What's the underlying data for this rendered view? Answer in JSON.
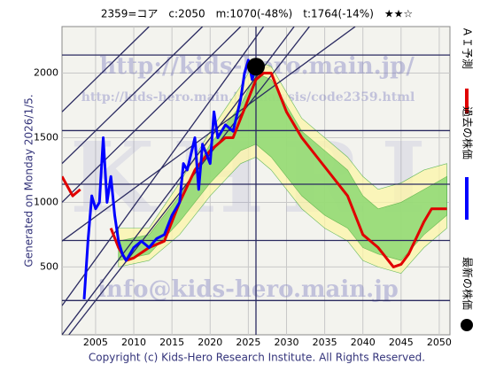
{
  "chart_data": {
    "type": "line",
    "title": "2359=コア　c:2050　m:1070(-48%)　t:1764(-14%)　★★☆",
    "side_note": "Generated on Monday 2026/1/5.",
    "footer": "Copyright (c) Kids-Hero Research Institute. All Rights Reserved.",
    "watermarks": [
      "http://kids-hero.main.jp/",
      "http://kids-hero.main.jp/analysis/code2359.html",
      "info@kids-hero.main.jp",
      "KHRI"
    ],
    "xlim": [
      2000.6,
      2051.4
    ],
    "ylim": [
      -25,
      2360
    ],
    "xticks": [
      2005,
      2010,
      2015,
      2020,
      2025,
      2030,
      2035,
      2040,
      2045,
      2050
    ],
    "yticks": [
      500,
      1000,
      1500,
      2000
    ],
    "grid": true,
    "bands": [
      {
        "color": "#fdf6a8",
        "x": [
          2008,
          2012,
          2016,
          2020,
          2024,
          2026,
          2028,
          2030,
          2032,
          2035,
          2038,
          2040,
          2042,
          2045,
          2048,
          2051
        ],
        "upper": [
          800,
          800,
          1150,
          1550,
          1900,
          2100,
          2050,
          1850,
          1650,
          1500,
          1350,
          1200,
          1100,
          1150,
          1250,
          1300
        ],
        "lower": [
          500,
          550,
          750,
          1050,
          1300,
          1350,
          1250,
          1100,
          950,
          800,
          700,
          550,
          500,
          450,
          650,
          800
        ]
      },
      {
        "color": "#7fd66a",
        "x": [
          2008,
          2012,
          2016,
          2020,
          2024,
          2026,
          2028,
          2030,
          2032,
          2035,
          2038,
          2040,
          2042,
          2045,
          2048,
          2051
        ],
        "upper": [
          700,
          750,
          1050,
          1450,
          1750,
          2000,
          1950,
          1750,
          1550,
          1400,
          1250,
          1050,
          950,
          1000,
          1100,
          1200
        ],
        "lower": [
          550,
          600,
          850,
          1150,
          1400,
          1450,
          1350,
          1200,
          1050,
          900,
          800,
          650,
          600,
          550,
          750,
          900
        ]
      }
    ],
    "hlines": [
      2140,
      1555,
      1140,
      705,
      240
    ],
    "vline": 2026,
    "channel_lines": [
      {
        "x": [
          2000.6,
          2012
        ],
        "values": [
          1700,
          2360
        ]
      },
      {
        "x": [
          2000.6,
          2019
        ],
        "values": [
          1300,
          2360
        ]
      },
      {
        "x": [
          2000.6,
          2024
        ],
        "values": [
          1000,
          2360
        ]
      },
      {
        "x": [
          2000.6,
          2039
        ],
        "values": [
          700,
          2360
        ]
      },
      {
        "x": [
          2000.6,
          2027
        ],
        "values": [
          200,
          2360
        ]
      },
      {
        "x": [
          2000.6,
          2031
        ],
        "values": [
          -25,
          2360
        ]
      },
      {
        "x": [
          2001.5,
          2033
        ],
        "values": [
          -25,
          2360
        ]
      }
    ],
    "series": [
      {
        "name": "ＡＩ予測",
        "color": "#e00000",
        "x": [
          2000.6,
          2002,
          2003,
          2005,
          2007,
          2008,
          2009,
          2010,
          2012,
          2014,
          2016,
          2018,
          2020,
          2022,
          2023,
          2024,
          2025,
          2026,
          2027,
          2028,
          2029,
          2030,
          2032,
          2034,
          2036,
          2038,
          2040,
          2042,
          2044,
          2045,
          2046,
          2048,
          2049,
          2050,
          2051
        ],
        "values": [
          1200,
          1050,
          1100,
          null,
          800,
          650,
          550,
          570,
          650,
          700,
          1000,
          1250,
          1400,
          1500,
          1500,
          1650,
          1800,
          1950,
          2000,
          2000,
          1850,
          1700,
          1500,
          1350,
          1200,
          1050,
          750,
          650,
          500,
          520,
          600,
          850,
          950,
          950,
          950
        ]
      },
      {
        "name": "過去の株価",
        "color": "#0000ff",
        "x": [
          2003.5,
          2004,
          2004.5,
          2005,
          2005.5,
          2006,
          2006.5,
          2007,
          2007.5,
          2008,
          2008.5,
          2009,
          2010,
          2011,
          2012,
          2013,
          2014,
          2015,
          2016,
          2016.5,
          2017,
          2018,
          2018.5,
          2019,
          2020,
          2020.5,
          2021,
          2022,
          2023,
          2024,
          2024.5,
          2025,
          2025.5,
          2026
        ],
        "values": [
          250,
          700,
          1050,
          950,
          1000,
          1500,
          1000,
          1200,
          900,
          700,
          600,
          550,
          650,
          700,
          650,
          720,
          750,
          900,
          1000,
          1300,
          1250,
          1500,
          1100,
          1450,
          1300,
          1700,
          1500,
          1600,
          1550,
          1800,
          2000,
          2100,
          1950,
          2050
        ]
      }
    ],
    "latest": {
      "name": "最新の株価",
      "color": "#000000",
      "x": 2026,
      "value": 2050
    }
  }
}
